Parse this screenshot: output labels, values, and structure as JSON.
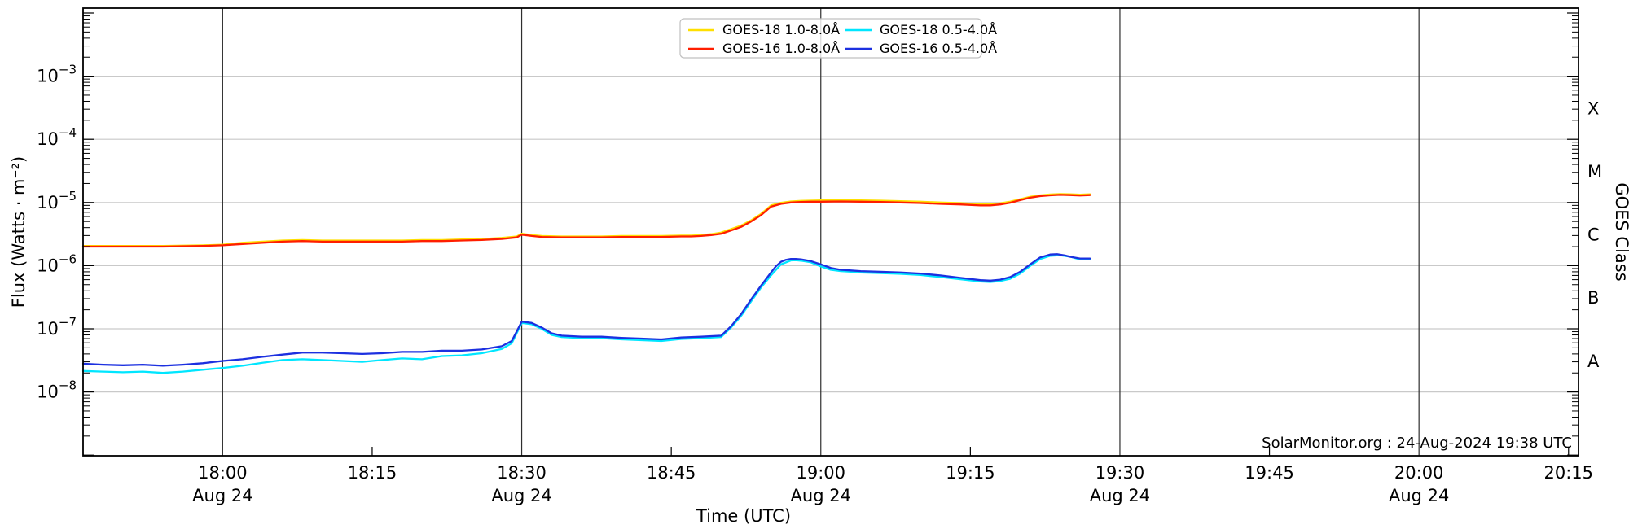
{
  "watermark": {
    "text": "SolarMonitor.org : 24-Aug-2024 19:38 UTC"
  },
  "colors": {
    "h_grid": "#c9c9c9",
    "v_grid": "#2e2e2e",
    "axis": "#000000",
    "legend_border": "#c0c0c0"
  },
  "chart_data": {
    "type": "line",
    "title": "",
    "xlabel": "Time (UTC)",
    "ylabel": "Flux (Watts · m⁻²)",
    "ylabel_right": "GOES Class",
    "y_scale": "log",
    "y_range_exponents": [
      -9,
      -2
    ],
    "x_domain_minutes_after_1800": [
      -14,
      136
    ],
    "grid": "horizontal-light-gray, vertical-dark-every-30min",
    "legend_position": "upper center",
    "x_ticks": [
      {
        "t": 0,
        "label": "18:00",
        "grid": true,
        "date_label": "Aug 24"
      },
      {
        "t": 15,
        "label": "18:15",
        "grid": false,
        "date_label": ""
      },
      {
        "t": 30,
        "label": "18:30",
        "grid": true,
        "date_label": "Aug 24"
      },
      {
        "t": 45,
        "label": "18:45",
        "grid": false,
        "date_label": ""
      },
      {
        "t": 60,
        "label": "19:00",
        "grid": true,
        "date_label": "Aug 24"
      },
      {
        "t": 75,
        "label": "19:15",
        "grid": false,
        "date_label": ""
      },
      {
        "t": 90,
        "label": "19:30",
        "grid": true,
        "date_label": "Aug 24"
      },
      {
        "t": 105,
        "label": "19:45",
        "grid": false,
        "date_label": ""
      },
      {
        "t": 120,
        "label": "20:00",
        "grid": true,
        "date_label": "Aug 24"
      },
      {
        "t": 135,
        "label": "20:15",
        "grid": false,
        "date_label": ""
      }
    ],
    "y_ticks": [
      {
        "exp": -3,
        "base": "10",
        "sup": "−3"
      },
      {
        "exp": -4,
        "base": "10",
        "sup": "−4"
      },
      {
        "exp": -5,
        "base": "10",
        "sup": "−5"
      },
      {
        "exp": -6,
        "base": "10",
        "sup": "−6"
      },
      {
        "exp": -7,
        "base": "10",
        "sup": "−7"
      },
      {
        "exp": -8,
        "base": "10",
        "sup": "−8"
      }
    ],
    "right_ticks": [
      {
        "exp": -3.5,
        "label": "X"
      },
      {
        "exp": -4.5,
        "label": "M"
      },
      {
        "exp": -5.5,
        "label": "C"
      },
      {
        "exp": -6.5,
        "label": "B"
      },
      {
        "exp": -7.5,
        "label": "A"
      }
    ],
    "series": [
      {
        "id": "goes18-long",
        "name": "GOES-18 1.0-8.0Å",
        "color": "#ffdf00",
        "unit_scale": 1e-06,
        "points": [
          [
            -14,
            2.05
          ],
          [
            -10,
            2.05
          ],
          [
            -6,
            2.05
          ],
          [
            -2,
            2.1
          ],
          [
            0,
            2.15
          ],
          [
            2,
            2.3
          ],
          [
            4,
            2.4
          ],
          [
            6,
            2.5
          ],
          [
            8,
            2.55
          ],
          [
            10,
            2.5
          ],
          [
            12,
            2.5
          ],
          [
            14,
            2.5
          ],
          [
            16,
            2.5
          ],
          [
            18,
            2.5
          ],
          [
            20,
            2.55
          ],
          [
            22,
            2.55
          ],
          [
            24,
            2.6
          ],
          [
            26,
            2.65
          ],
          [
            28,
            2.75
          ],
          [
            29.5,
            2.9
          ],
          [
            30,
            3.2
          ],
          [
            31,
            3.05
          ],
          [
            32,
            2.95
          ],
          [
            34,
            2.9
          ],
          [
            36,
            2.9
          ],
          [
            38,
            2.9
          ],
          [
            40,
            2.95
          ],
          [
            42,
            2.95
          ],
          [
            44,
            2.95
          ],
          [
            46,
            3.0
          ],
          [
            47,
            3.0
          ],
          [
            48,
            3.05
          ],
          [
            49,
            3.15
          ],
          [
            50,
            3.35
          ],
          [
            51,
            3.8
          ],
          [
            52,
            4.3
          ],
          [
            53,
            5.2
          ],
          [
            54,
            6.6
          ],
          [
            55,
            9.0
          ],
          [
            56,
            9.9
          ],
          [
            57,
            10.4
          ],
          [
            58,
            10.6
          ],
          [
            60,
            10.8
          ],
          [
            62,
            10.9
          ],
          [
            64,
            10.8
          ],
          [
            66,
            10.7
          ],
          [
            68,
            10.5
          ],
          [
            70,
            10.3
          ],
          [
            72,
            10.0
          ],
          [
            74,
            9.8
          ],
          [
            76,
            9.4
          ],
          [
            77,
            9.4
          ],
          [
            78,
            9.7
          ],
          [
            79,
            10.3
          ],
          [
            80,
            11.3
          ],
          [
            81,
            12.3
          ],
          [
            82,
            13.0
          ],
          [
            83,
            13.4
          ],
          [
            84,
            13.6
          ],
          [
            85,
            13.5
          ],
          [
            86,
            13.3
          ],
          [
            87,
            13.5
          ]
        ]
      },
      {
        "id": "goes16-long",
        "name": "GOES-16 1.0-8.0Å",
        "color": "#ff1e00",
        "unit_scale": 1e-06,
        "points": [
          [
            -14,
            2.0
          ],
          [
            -10,
            2.0
          ],
          [
            -6,
            2.0
          ],
          [
            -2,
            2.05
          ],
          [
            0,
            2.1
          ],
          [
            2,
            2.2
          ],
          [
            4,
            2.3
          ],
          [
            6,
            2.4
          ],
          [
            8,
            2.45
          ],
          [
            10,
            2.4
          ],
          [
            12,
            2.4
          ],
          [
            14,
            2.4
          ],
          [
            16,
            2.4
          ],
          [
            18,
            2.4
          ],
          [
            20,
            2.45
          ],
          [
            22,
            2.45
          ],
          [
            24,
            2.5
          ],
          [
            26,
            2.55
          ],
          [
            28,
            2.65
          ],
          [
            29.5,
            2.8
          ],
          [
            30,
            3.1
          ],
          [
            31,
            2.95
          ],
          [
            32,
            2.85
          ],
          [
            34,
            2.8
          ],
          [
            36,
            2.8
          ],
          [
            38,
            2.8
          ],
          [
            40,
            2.85
          ],
          [
            42,
            2.85
          ],
          [
            44,
            2.85
          ],
          [
            46,
            2.9
          ],
          [
            47,
            2.9
          ],
          [
            48,
            2.95
          ],
          [
            49,
            3.05
          ],
          [
            50,
            3.2
          ],
          [
            51,
            3.6
          ],
          [
            52,
            4.1
          ],
          [
            53,
            5.0
          ],
          [
            54,
            6.3
          ],
          [
            55,
            8.6
          ],
          [
            56,
            9.5
          ],
          [
            57,
            10.0
          ],
          [
            58,
            10.2
          ],
          [
            59,
            10.3
          ],
          [
            60,
            10.3
          ],
          [
            62,
            10.4
          ],
          [
            64,
            10.3
          ],
          [
            66,
            10.2
          ],
          [
            68,
            10.0
          ],
          [
            70,
            9.8
          ],
          [
            72,
            9.5
          ],
          [
            74,
            9.3
          ],
          [
            76,
            9.0
          ],
          [
            77,
            9.0
          ],
          [
            78,
            9.3
          ],
          [
            79,
            9.9
          ],
          [
            80,
            10.9
          ],
          [
            81,
            11.9
          ],
          [
            82,
            12.6
          ],
          [
            83,
            13.0
          ],
          [
            84,
            13.2
          ],
          [
            85,
            13.1
          ],
          [
            86,
            12.9
          ],
          [
            87,
            13.1
          ]
        ]
      },
      {
        "id": "goes18-short",
        "name": "GOES-18 0.5-4.0Å",
        "color": "#00e6ff",
        "unit_scale": 1e-08,
        "points": [
          [
            -14,
            2.15
          ],
          [
            -12,
            2.1
          ],
          [
            -10,
            2.05
          ],
          [
            -8,
            2.1
          ],
          [
            -6,
            2.0
          ],
          [
            -4,
            2.1
          ],
          [
            -2,
            2.25
          ],
          [
            0,
            2.4
          ],
          [
            2,
            2.6
          ],
          [
            4,
            2.9
          ],
          [
            6,
            3.2
          ],
          [
            8,
            3.3
          ],
          [
            10,
            3.2
          ],
          [
            12,
            3.1
          ],
          [
            14,
            3.0
          ],
          [
            16,
            3.2
          ],
          [
            18,
            3.4
          ],
          [
            20,
            3.3
          ],
          [
            22,
            3.7
          ],
          [
            24,
            3.8
          ],
          [
            26,
            4.1
          ],
          [
            28,
            4.8
          ],
          [
            29,
            5.9
          ],
          [
            30,
            12.4
          ],
          [
            31,
            11.8
          ],
          [
            32,
            10.0
          ],
          [
            33,
            8.0
          ],
          [
            34,
            7.4
          ],
          [
            36,
            7.1
          ],
          [
            38,
            7.1
          ],
          [
            40,
            6.8
          ],
          [
            42,
            6.6
          ],
          [
            44,
            6.4
          ],
          [
            46,
            6.9
          ],
          [
            48,
            7.1
          ],
          [
            50,
            7.4
          ],
          [
            51,
            10.5
          ],
          [
            52,
            16
          ],
          [
            53,
            27
          ],
          [
            54,
            45
          ],
          [
            55,
            70
          ],
          [
            56,
            105
          ],
          [
            57,
            121
          ],
          [
            57.5,
            122
          ],
          [
            58,
            120
          ],
          [
            59,
            113
          ],
          [
            60,
            97
          ],
          [
            61,
            86
          ],
          [
            62,
            82
          ],
          [
            63,
            80
          ],
          [
            64,
            78
          ],
          [
            66,
            76
          ],
          [
            68,
            74
          ],
          [
            70,
            71
          ],
          [
            72,
            66
          ],
          [
            74,
            61
          ],
          [
            76,
            56
          ],
          [
            77,
            55
          ],
          [
            78,
            57
          ],
          [
            79,
            62
          ],
          [
            80,
            75
          ],
          [
            81,
            99
          ],
          [
            82,
            127
          ],
          [
            83,
            143
          ],
          [
            84,
            146
          ],
          [
            85,
            139
          ],
          [
            86,
            125
          ],
          [
            87,
            125
          ]
        ]
      },
      {
        "id": "goes16-short",
        "name": "GOES-16 0.5-4.0Å",
        "color": "#1c30e0",
        "unit_scale": 1e-08,
        "points": [
          [
            -14,
            2.8
          ],
          [
            -12,
            2.7
          ],
          [
            -10,
            2.65
          ],
          [
            -8,
            2.7
          ],
          [
            -6,
            2.6
          ],
          [
            -4,
            2.7
          ],
          [
            -2,
            2.85
          ],
          [
            0,
            3.1
          ],
          [
            2,
            3.3
          ],
          [
            4,
            3.6
          ],
          [
            6,
            3.9
          ],
          [
            8,
            4.2
          ],
          [
            10,
            4.2
          ],
          [
            12,
            4.1
          ],
          [
            14,
            4.0
          ],
          [
            16,
            4.1
          ],
          [
            18,
            4.3
          ],
          [
            20,
            4.3
          ],
          [
            22,
            4.5
          ],
          [
            24,
            4.5
          ],
          [
            26,
            4.7
          ],
          [
            28,
            5.3
          ],
          [
            29,
            6.4
          ],
          [
            30,
            13.0
          ],
          [
            31,
            12.4
          ],
          [
            32,
            10.5
          ],
          [
            33,
            8.5
          ],
          [
            34,
            7.8
          ],
          [
            36,
            7.5
          ],
          [
            38,
            7.5
          ],
          [
            40,
            7.2
          ],
          [
            42,
            7.0
          ],
          [
            44,
            6.8
          ],
          [
            46,
            7.3
          ],
          [
            48,
            7.5
          ],
          [
            50,
            7.8
          ],
          [
            51,
            11
          ],
          [
            52,
            17
          ],
          [
            53,
            29
          ],
          [
            54,
            48
          ],
          [
            55,
            78
          ],
          [
            55.5,
            98
          ],
          [
            56,
            115
          ],
          [
            56.5,
            124
          ],
          [
            57,
            128
          ],
          [
            57.5,
            128
          ],
          [
            58,
            126
          ],
          [
            59,
            118
          ],
          [
            60,
            105
          ],
          [
            61,
            92
          ],
          [
            62,
            86
          ],
          [
            63,
            84
          ],
          [
            64,
            82
          ],
          [
            66,
            80
          ],
          [
            68,
            78
          ],
          [
            70,
            75
          ],
          [
            72,
            70
          ],
          [
            74,
            64
          ],
          [
            76,
            59
          ],
          [
            77,
            58
          ],
          [
            78,
            60
          ],
          [
            79,
            66
          ],
          [
            80,
            80
          ],
          [
            81,
            105
          ],
          [
            82,
            135
          ],
          [
            83,
            150
          ],
          [
            83.7,
            152
          ],
          [
            84.5,
            145
          ],
          [
            85,
            138
          ],
          [
            86,
            130
          ],
          [
            87,
            130
          ]
        ]
      }
    ]
  }
}
